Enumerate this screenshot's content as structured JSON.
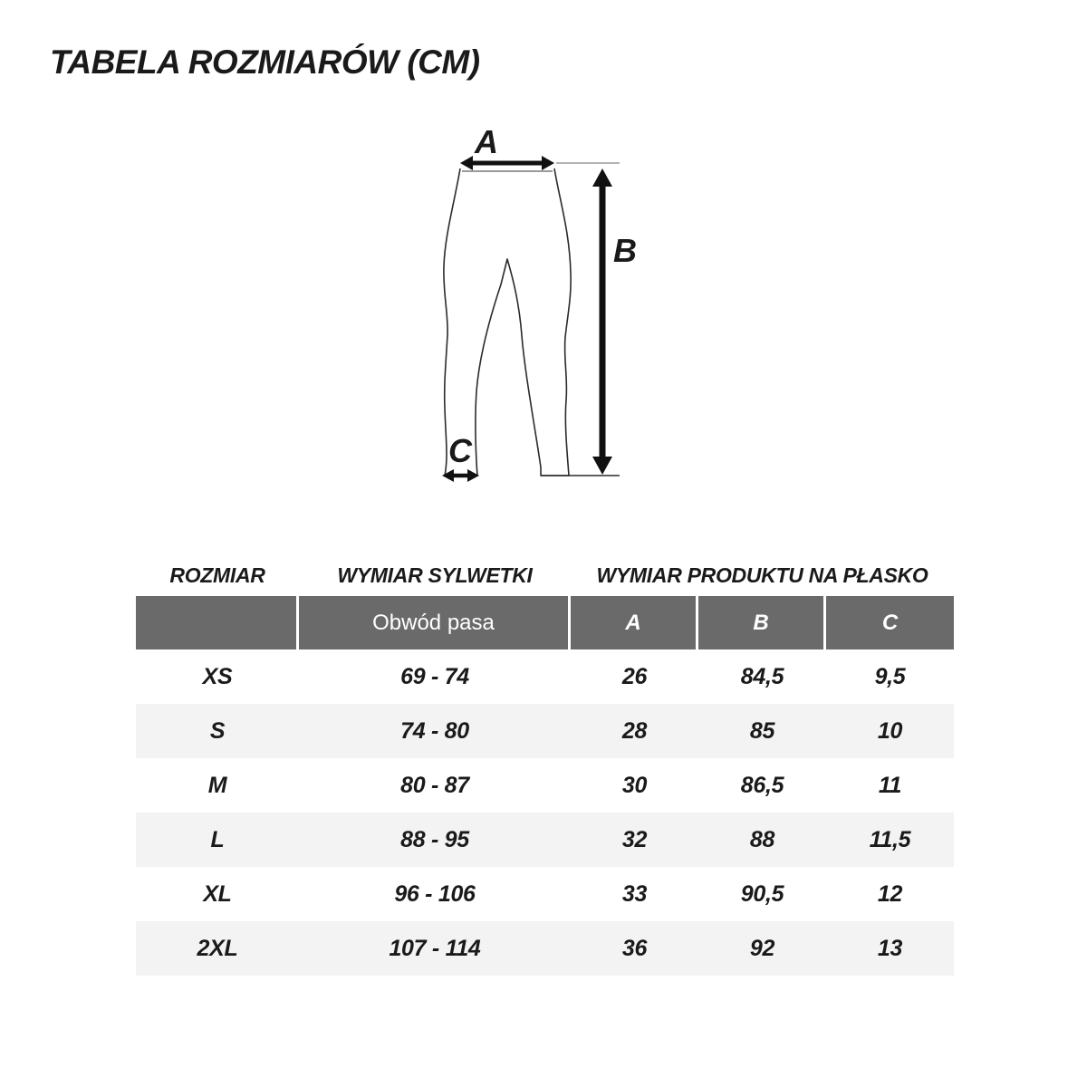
{
  "title": "TABELA ROZMIARÓW (CM)",
  "diagram": {
    "label_a": "A",
    "label_b": "B",
    "label_c": "C"
  },
  "chart_data": {
    "type": "table",
    "title": "TABELA ROZMIARÓW (CM)",
    "group_headers": [
      "ROZMIAR",
      "WYMIAR SYLWETKI",
      "WYMIAR PRODUKTU NA PŁASKO"
    ],
    "columns": [
      "",
      "Obwód pasa",
      "A",
      "B",
      "C"
    ],
    "rows": [
      [
        "XS",
        "69 - 74",
        "26",
        "84,5",
        "9,5"
      ],
      [
        "S",
        "74 - 80",
        "28",
        "85",
        "10"
      ],
      [
        "M",
        "80 - 87",
        "30",
        "86,5",
        "11"
      ],
      [
        "L",
        "88 - 95",
        "32",
        "88",
        "11,5"
      ],
      [
        "XL",
        "96 - 106",
        "33",
        "90,5",
        "12"
      ],
      [
        "2XL",
        "107 - 114",
        "36",
        "92",
        "13"
      ]
    ]
  },
  "colors": {
    "header_bg": "#6a6a6a",
    "header_text": "#ffffff",
    "row_alt_bg": "#f3f3f3",
    "text_dark": "#1a1a1a",
    "line_gray": "#9a9a9a"
  }
}
